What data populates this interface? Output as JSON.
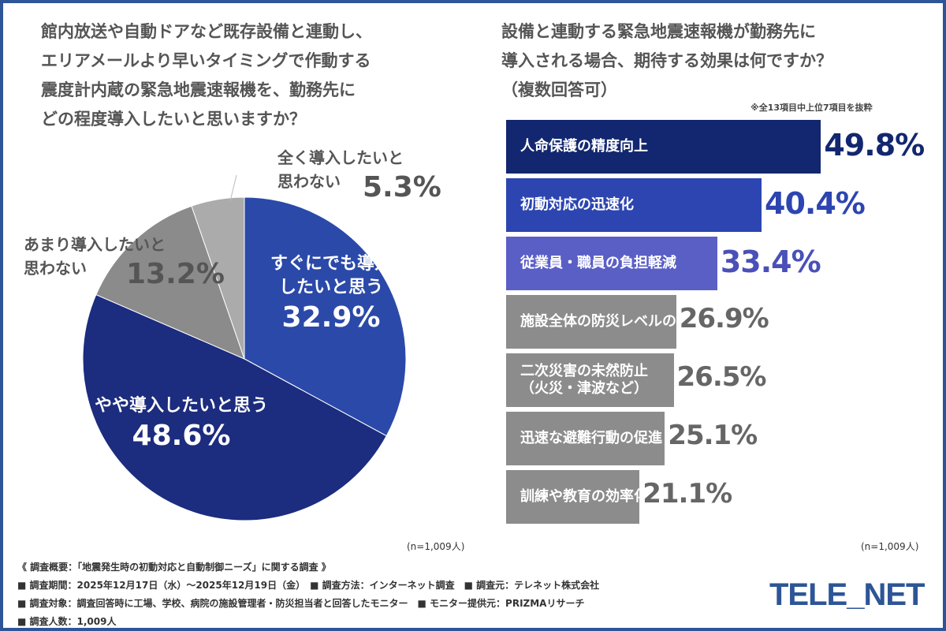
{
  "chart_data": [
    {
      "type": "pie",
      "title": "館内放送や自動ドアなど既存設備と連動し、\nエリアメールより早いタイミングで作動する\n震度計内蔵の緊急地震速報機を、勤務先に\nどの程度導入したいと思いますか？",
      "slices": [
        {
          "label": "すぐにでも導入\nしたいと思う",
          "value": 32.9,
          "display": "32.9%",
          "color": "#2b49a8"
        },
        {
          "label": "やや導入したいと思う",
          "value": 48.6,
          "display": "48.6%",
          "color": "#1c2c7e"
        },
        {
          "label": "あまり導入したいと\n思わない",
          "value": 13.2,
          "display": "13.2%",
          "color": "#8b8b8b"
        },
        {
          "label": "全く導入したいと\n思わない",
          "value": 5.3,
          "display": "5.3%",
          "color": "#ababab"
        }
      ],
      "n": "(n=1,009人)"
    },
    {
      "type": "bar",
      "orientation": "horizontal",
      "title": "設備と連動する緊急地震速報機が勤務先に\n導入される場合、期待する効果は何ですか？\n（複数回答可）",
      "note": "※全13項目中上位7項目を抜粋",
      "categories": [
        "人命保護の精度向上",
        "初動対応の迅速化",
        "従業員・職員の負担軽減",
        "施設全体の防災レベルの向上",
        "二次災害の未然防止\n（火災・津波など）",
        "迅速な避難行動の促進",
        "訓練や教育の効率化"
      ],
      "values": [
        49.8,
        40.4,
        33.4,
        26.9,
        26.5,
        25.1,
        21.1
      ],
      "display": [
        "49.8%",
        "40.4%",
        "33.4%",
        "26.9%",
        "26.5%",
        "25.1%",
        "21.1%"
      ],
      "colors": [
        "#12276f",
        "#2c45b0",
        "#5a5fc6",
        "#8c8c8c",
        "#8c8c8c",
        "#8c8c8c",
        "#8c8c8c"
      ],
      "value_colors": [
        "#12276f",
        "#2c45b0",
        "#4a50b8",
        "#666666",
        "#666666",
        "#666666",
        "#666666"
      ],
      "n": "(n=1,009人)"
    }
  ],
  "footer": [
    "《 調査概要：「地震発生時の初動対応と自動制御ニーズ」に関する調査 》",
    "■ 調査期間：2025年12月17日（水）～2025年12月19日（金）　■ 調査方法：インターネット調査　■ 調査元：テレネット株式会社",
    "■ 調査対象：調査回答時に工場、学校、病院の施設管理者・防災担当者と回答したモニター　■ モニター提供元：PRIZMAリサーチ",
    "■ 調査人数：1,009人"
  ],
  "logo": "TELE_NET"
}
